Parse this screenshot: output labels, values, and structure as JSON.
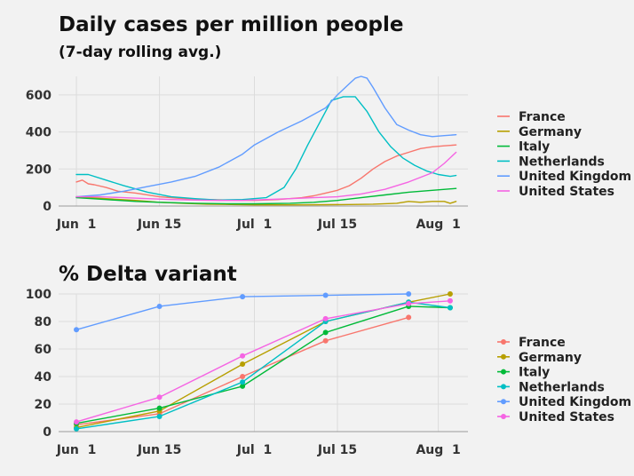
{
  "chart_data": [
    {
      "type": "line",
      "title": "Daily cases per million people",
      "subtitle": "(7-day rolling avg.)",
      "xlabel": "",
      "ylabel": "",
      "x_ticks": [
        {
          "label": "Jun  1",
          "day": 0
        },
        {
          "label": "Jun 15",
          "day": 14
        },
        {
          "label": "Jul  1",
          "day": 30
        },
        {
          "label": "Jul 15",
          "day": 44
        },
        {
          "label": "Aug  1",
          "day": 61
        }
      ],
      "xlim": [
        -3,
        66
      ],
      "ylim": [
        0,
        700
      ],
      "y_ticks": [
        0,
        200,
        400,
        600
      ],
      "grid": true,
      "legend_position": "right",
      "series": [
        {
          "name": "France",
          "color": "#f8766d",
          "x": [
            0,
            1,
            2,
            3,
            5,
            7,
            10,
            14,
            18,
            22,
            26,
            30,
            34,
            38,
            40,
            42,
            44,
            46,
            48,
            50,
            52,
            54,
            56,
            58,
            60,
            62,
            64
          ],
          "y": [
            130,
            140,
            120,
            115,
            100,
            80,
            70,
            50,
            40,
            35,
            32,
            30,
            35,
            45,
            55,
            70,
            85,
            110,
            150,
            200,
            240,
            270,
            290,
            310,
            320,
            325,
            330
          ]
        },
        {
          "name": "Germany",
          "color": "#b79f00",
          "x": [
            0,
            5,
            10,
            14,
            18,
            22,
            26,
            30,
            36,
            42,
            46,
            50,
            54,
            56,
            58,
            60,
            62,
            63,
            64
          ],
          "y": [
            50,
            40,
            30,
            20,
            15,
            10,
            8,
            6,
            6,
            7,
            8,
            10,
            15,
            25,
            20,
            25,
            25,
            15,
            25
          ]
        },
        {
          "name": "Italy",
          "color": "#00ba38",
          "x": [
            0,
            5,
            10,
            14,
            20,
            26,
            30,
            36,
            40,
            44,
            48,
            52,
            56,
            60,
            64
          ],
          "y": [
            45,
            35,
            25,
            20,
            15,
            12,
            12,
            15,
            20,
            30,
            45,
            60,
            75,
            85,
            95
          ]
        },
        {
          "name": "Netherlands",
          "color": "#00bfc4",
          "x": [
            0,
            2,
            5,
            8,
            12,
            16,
            20,
            24,
            28,
            32,
            35,
            37,
            39,
            41,
            43,
            45,
            47,
            49,
            51,
            53,
            55,
            57,
            59,
            61,
            63,
            64
          ],
          "y": [
            170,
            170,
            140,
            110,
            75,
            50,
            40,
            32,
            35,
            45,
            100,
            200,
            330,
            450,
            570,
            590,
            590,
            510,
            400,
            320,
            260,
            220,
            190,
            170,
            160,
            165
          ]
        },
        {
          "name": "United Kingdom",
          "color": "#619cff",
          "x": [
            0,
            4,
            8,
            12,
            16,
            20,
            24,
            28,
            30,
            34,
            38,
            42,
            44,
            46,
            47,
            48,
            49,
            50,
            52,
            54,
            56,
            58,
            60,
            62,
            64
          ],
          "y": [
            50,
            60,
            80,
            105,
            130,
            160,
            210,
            280,
            330,
            400,
            460,
            530,
            600,
            660,
            690,
            700,
            690,
            640,
            530,
            440,
            410,
            385,
            375,
            380,
            385
          ]
        },
        {
          "name": "United States",
          "color": "#f564e3",
          "x": [
            0,
            4,
            8,
            12,
            16,
            20,
            24,
            28,
            32,
            36,
            40,
            44,
            48,
            52,
            56,
            60,
            62,
            64
          ],
          "y": [
            50,
            50,
            45,
            40,
            35,
            32,
            30,
            30,
            35,
            40,
            45,
            50,
            65,
            90,
            130,
            180,
            230,
            290
          ]
        }
      ]
    },
    {
      "type": "line",
      "title": "% Delta variant",
      "xlabel": "",
      "ylabel": "",
      "x_ticks": [
        {
          "label": "Jun  1",
          "day": 0
        },
        {
          "label": "Jun 15",
          "day": 14
        },
        {
          "label": "Jul  1",
          "day": 30
        },
        {
          "label": "Jul 15",
          "day": 44
        },
        {
          "label": "Aug  1",
          "day": 61
        }
      ],
      "xlim": [
        -3,
        66
      ],
      "ylim": [
        0,
        100
      ],
      "y_ticks": [
        0,
        20,
        40,
        60,
        80,
        100
      ],
      "grid": true,
      "legend_position": "right",
      "markers": true,
      "series": [
        {
          "name": "France",
          "color": "#f8766d",
          "x": [
            0,
            14,
            28,
            42,
            56
          ],
          "y": [
            5,
            13,
            40,
            66,
            83
          ]
        },
        {
          "name": "Germany",
          "color": "#b79f00",
          "x": [
            0,
            14,
            28,
            42,
            56,
            63
          ],
          "y": [
            3,
            15,
            49,
            80,
            94,
            100
          ]
        },
        {
          "name": "Italy",
          "color": "#00ba38",
          "x": [
            0,
            14,
            28,
            42,
            56,
            63
          ],
          "y": [
            6,
            17,
            33,
            72,
            91,
            90
          ]
        },
        {
          "name": "Netherlands",
          "color": "#00bfc4",
          "x": [
            0,
            14,
            28,
            42,
            56,
            63
          ],
          "y": [
            2,
            11,
            36,
            80,
            94,
            90
          ]
        },
        {
          "name": "United Kingdom",
          "color": "#619cff",
          "x": [
            0,
            14,
            28,
            42,
            56
          ],
          "y": [
            74,
            91,
            98,
            99,
            100
          ]
        },
        {
          "name": "United States",
          "color": "#f564e3",
          "x": [
            0,
            14,
            28,
            42,
            56,
            63
          ],
          "y": [
            7,
            25,
            55,
            82,
            93,
            95
          ]
        }
      ]
    }
  ]
}
